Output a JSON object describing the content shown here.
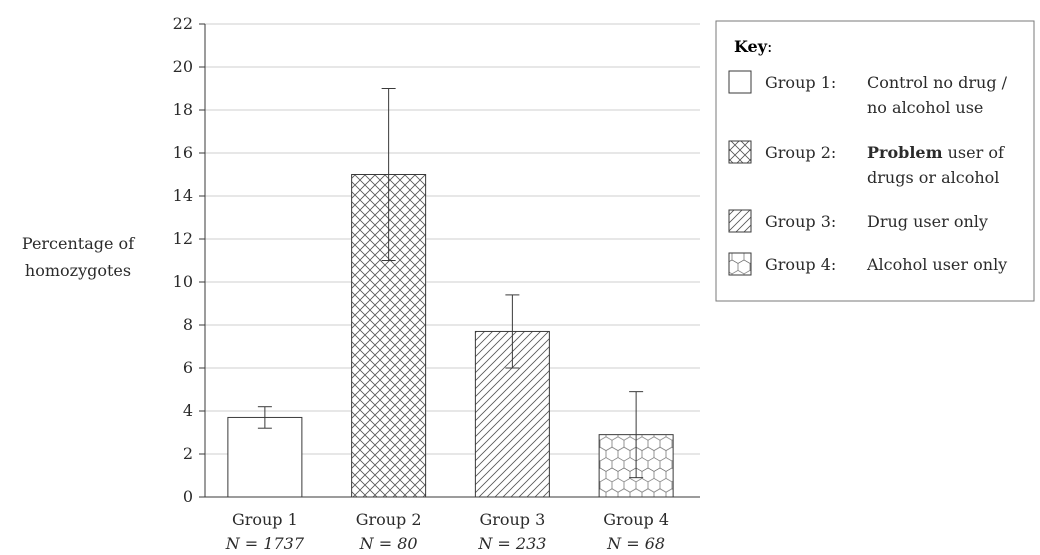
{
  "chart_data": {
    "type": "bar",
    "ylabel": [
      "Percentage of",
      "homozygotes"
    ],
    "ylim": [
      0,
      22
    ],
    "yticks": [
      0,
      2,
      4,
      6,
      8,
      10,
      12,
      14,
      16,
      18,
      20,
      22
    ],
    "grid": "horizontal",
    "categories": [
      {
        "label": "Group 1",
        "n_label": "N = 1737",
        "value": 3.7,
        "err_low": 3.2,
        "err_high": 4.2,
        "pattern": "none"
      },
      {
        "label": "Group 2",
        "n_label": "N = 80",
        "value": 15.0,
        "err_low": 11.0,
        "err_high": 19.0,
        "pattern": "crosshatch"
      },
      {
        "label": "Group 3",
        "n_label": "N = 233",
        "value": 7.7,
        "err_low": 6.0,
        "err_high": 9.4,
        "pattern": "diagonal"
      },
      {
        "label": "Group 4",
        "n_label": "N = 68",
        "value": 2.9,
        "err_low": 0.9,
        "err_high": 4.9,
        "pattern": "hexagon"
      }
    ],
    "legend": {
      "title": "Key",
      "placement": "top-right",
      "entries": [
        {
          "group": "Group 1:",
          "lines": [
            [
              "",
              "Control no drug /"
            ],
            [
              "",
              "no alcohol use"
            ]
          ],
          "pattern": "none"
        },
        {
          "group": "Group 2:",
          "lines": [
            [
              "Problem",
              " user of"
            ],
            [
              "",
              "drugs or alcohol"
            ]
          ],
          "pattern": "crosshatch"
        },
        {
          "group": "Group 3:",
          "lines": [
            [
              "",
              "Drug user only"
            ]
          ],
          "pattern": "diagonal"
        },
        {
          "group": "Group 4:",
          "lines": [
            [
              "",
              "Alcohol user only"
            ]
          ],
          "pattern": "hexagon"
        }
      ]
    }
  }
}
